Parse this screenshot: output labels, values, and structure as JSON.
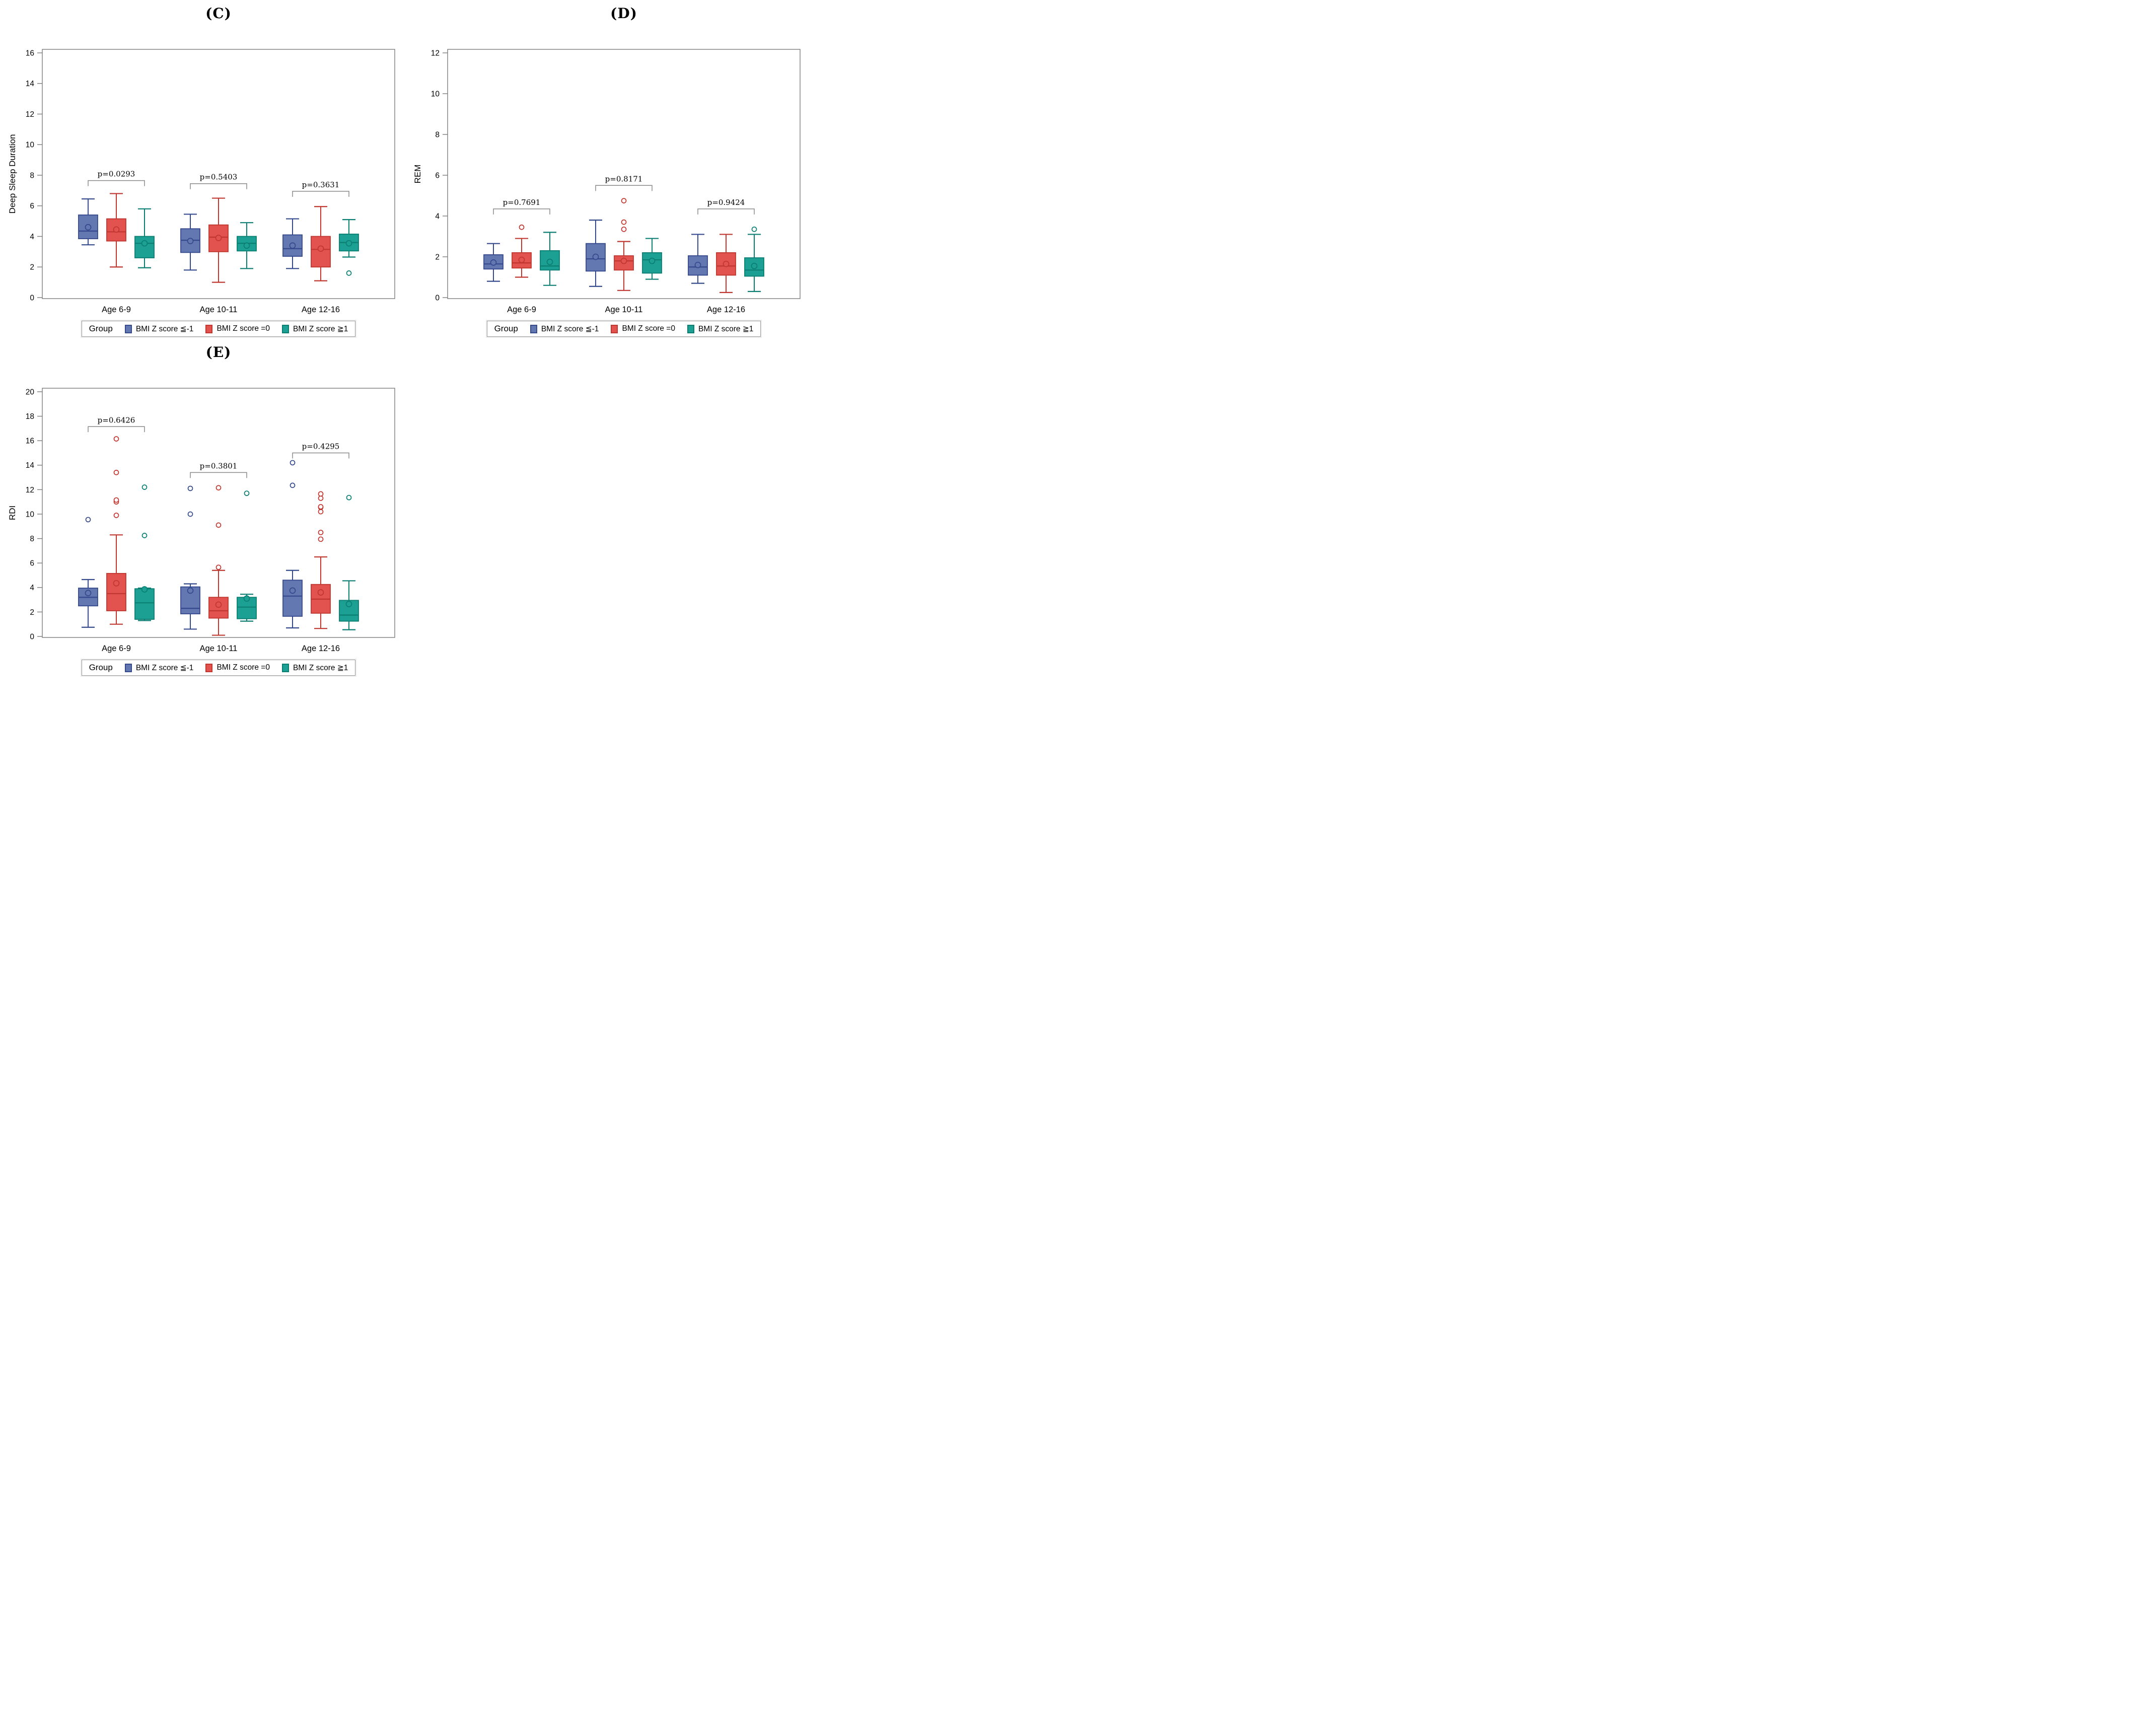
{
  "style": {
    "background": "#ffffff",
    "frame": "#7c7c7c",
    "bracket": "#8a8a8a",
    "text": "#000000"
  },
  "legend": {
    "title": "Group",
    "items": [
      {
        "label": "BMI Z score ≦-1",
        "fill": "#6377B1",
        "stroke": "#35498D"
      },
      {
        "label": "BMI Z score =0",
        "fill": "#E2524E",
        "stroke": "#C03730"
      },
      {
        "label": "BMI Z score ≧1",
        "fill": "#1CA093",
        "stroke": "#0B7E72"
      }
    ]
  },
  "chart_data": [
    {
      "id": "C",
      "type": "box",
      "panel_label": "(C)",
      "ylabel": "Deep Sleep Duration",
      "ylim": [
        0,
        16
      ],
      "ytick_step": 2,
      "grid": false,
      "legend_position": "bottom",
      "categories": [
        "Age 6-9",
        "Age 10-11",
        "Age 12-16"
      ],
      "series": [
        {
          "name": "BMI Z score ≦-1",
          "boxes": [
            {
              "lo": 3.45,
              "q1": 3.85,
              "med": 4.35,
              "mean": 4.6,
              "q3": 5.4,
              "hi": 6.45,
              "outliers": []
            },
            {
              "lo": 1.8,
              "q1": 2.95,
              "med": 3.75,
              "mean": 3.7,
              "q3": 4.5,
              "hi": 5.45,
              "outliers": []
            },
            {
              "lo": 1.9,
              "q1": 2.7,
              "med": 3.2,
              "mean": 3.4,
              "q3": 4.1,
              "hi": 5.15,
              "outliers": []
            }
          ]
        },
        {
          "name": "BMI Z score =0",
          "boxes": [
            {
              "lo": 2.0,
              "q1": 3.7,
              "med": 4.3,
              "mean": 4.45,
              "q3": 5.15,
              "hi": 6.8,
              "outliers": []
            },
            {
              "lo": 1.0,
              "q1": 3.0,
              "med": 3.95,
              "mean": 3.9,
              "q3": 4.75,
              "hi": 6.5,
              "outliers": []
            },
            {
              "lo": 1.1,
              "q1": 2.0,
              "med": 3.15,
              "mean": 3.2,
              "q3": 4.0,
              "hi": 5.95,
              "outliers": []
            }
          ]
        },
        {
          "name": "BMI Z score ≧1",
          "boxes": [
            {
              "lo": 1.95,
              "q1": 2.6,
              "med": 3.55,
              "mean": 3.55,
              "q3": 4.0,
              "hi": 5.8,
              "outliers": []
            },
            {
              "lo": 1.9,
              "q1": 3.05,
              "med": 3.55,
              "mean": 3.4,
              "q3": 4.0,
              "hi": 4.9,
              "outliers": []
            },
            {
              "lo": 2.65,
              "q1": 3.05,
              "med": 3.6,
              "mean": 3.55,
              "q3": 4.15,
              "hi": 5.1,
              "outliers": [
                1.6
              ]
            }
          ]
        }
      ],
      "pvalues": [
        {
          "label": "p=0.0293",
          "y": 7.65
        },
        {
          "label": "p=0.5403",
          "y": 7.45
        },
        {
          "label": "p=0.3631",
          "y": 6.95
        }
      ]
    },
    {
      "id": "D",
      "type": "box",
      "panel_label": "(D)",
      "ylabel": "REM",
      "ylim": [
        0,
        12
      ],
      "ytick_step": 2,
      "grid": false,
      "legend_position": "bottom",
      "categories": [
        "Age 6-9",
        "Age 10-11",
        "Age 12-16"
      ],
      "series": [
        {
          "name": "BMI Z score ≦-1",
          "boxes": [
            {
              "lo": 0.8,
              "q1": 1.4,
              "med": 1.65,
              "mean": 1.72,
              "q3": 2.1,
              "hi": 2.65,
              "outliers": []
            },
            {
              "lo": 0.55,
              "q1": 1.3,
              "med": 1.9,
              "mean": 2.0,
              "q3": 2.65,
              "hi": 3.8,
              "outliers": []
            },
            {
              "lo": 0.7,
              "q1": 1.1,
              "med": 1.5,
              "mean": 1.6,
              "q3": 2.05,
              "hi": 3.1,
              "outliers": []
            }
          ]
        },
        {
          "name": "BMI Z score =0",
          "boxes": [
            {
              "lo": 1.0,
              "q1": 1.45,
              "med": 1.7,
              "mean": 1.85,
              "q3": 2.2,
              "hi": 2.9,
              "outliers": [
                3.45
              ]
            },
            {
              "lo": 0.35,
              "q1": 1.35,
              "med": 1.8,
              "mean": 1.8,
              "q3": 2.05,
              "hi": 2.75,
              "outliers": [
                3.35,
                3.7,
                4.75
              ]
            },
            {
              "lo": 0.25,
              "q1": 1.1,
              "med": 1.55,
              "mean": 1.65,
              "q3": 2.2,
              "hi": 3.1,
              "outliers": []
            }
          ]
        },
        {
          "name": "BMI Z score ≧1",
          "boxes": [
            {
              "lo": 0.6,
              "q1": 1.35,
              "med": 1.55,
              "mean": 1.75,
              "q3": 2.3,
              "hi": 3.2,
              "outliers": []
            },
            {
              "lo": 0.9,
              "q1": 1.2,
              "med": 1.85,
              "mean": 1.8,
              "q3": 2.2,
              "hi": 2.9,
              "outliers": []
            },
            {
              "lo": 0.3,
              "q1": 1.05,
              "med": 1.35,
              "mean": 1.55,
              "q3": 1.95,
              "hi": 3.1,
              "outliers": [
                3.35
              ]
            }
          ]
        }
      ],
      "pvalues": [
        {
          "label": "p=0.7691",
          "y": 4.35
        },
        {
          "label": "p=0.8171",
          "y": 5.5
        },
        {
          "label": "p=0.9424",
          "y": 4.35
        }
      ]
    },
    {
      "id": "E",
      "type": "box",
      "panel_label": "(E)",
      "ylabel": "RDI",
      "ylim": [
        0,
        20
      ],
      "ytick_step": 2,
      "grid": false,
      "legend_position": "bottom",
      "categories": [
        "Age 6-9",
        "Age 10-11",
        "Age 12-16"
      ],
      "series": [
        {
          "name": "BMI Z score ≦-1",
          "boxes": [
            {
              "lo": 0.75,
              "q1": 2.5,
              "med": 3.2,
              "mean": 3.55,
              "q3": 3.95,
              "hi": 4.65,
              "outliers": [
                9.55
              ]
            },
            {
              "lo": 0.6,
              "q1": 1.85,
              "med": 2.3,
              "mean": 3.75,
              "q3": 4.05,
              "hi": 4.3,
              "outliers": [
                10.0,
                12.1
              ]
            },
            {
              "lo": 0.7,
              "q1": 1.65,
              "med": 3.3,
              "mean": 3.75,
              "q3": 4.6,
              "hi": 5.4,
              "outliers": [
                12.35,
                14.2
              ]
            }
          ]
        },
        {
          "name": "BMI Z score =0",
          "boxes": [
            {
              "lo": 1.0,
              "q1": 2.1,
              "med": 3.5,
              "mean": 4.35,
              "q3": 5.15,
              "hi": 8.3,
              "outliers": [
                9.9,
                11.0,
                11.15,
                13.4,
                16.15
              ]
            },
            {
              "lo": 0.1,
              "q1": 1.5,
              "med": 2.1,
              "mean": 2.6,
              "q3": 3.2,
              "hi": 5.4,
              "outliers": [
                5.65,
                9.1,
                12.15
              ]
            },
            {
              "lo": 0.65,
              "q1": 1.9,
              "med": 3.05,
              "mean": 3.6,
              "q3": 4.25,
              "hi": 6.5,
              "outliers": [
                7.95,
                8.5,
                10.2,
                10.55,
                10.6,
                11.3,
                11.65
              ]
            }
          ]
        },
        {
          "name": "BMI Z score ≧1",
          "boxes": [
            {
              "lo": 1.3,
              "q1": 1.4,
              "med": 2.75,
              "mean": 3.85,
              "q3": 3.9,
              "hi": 3.95,
              "outliers": [
                8.25,
                12.2
              ]
            },
            {
              "lo": 1.25,
              "q1": 1.45,
              "med": 2.4,
              "mean": 3.1,
              "q3": 3.2,
              "hi": 3.45,
              "outliers": [
                11.7
              ]
            },
            {
              "lo": 0.55,
              "q1": 1.25,
              "med": 1.75,
              "mean": 2.65,
              "q3": 2.95,
              "hi": 4.55,
              "outliers": [
                11.35
              ]
            }
          ]
        }
      ],
      "pvalues": [
        {
          "label": "p=0.6426",
          "y": 17.15
        },
        {
          "label": "p=0.3801",
          "y": 13.4
        },
        {
          "label": "p=0.4295",
          "y": 15.0
        }
      ]
    }
  ]
}
